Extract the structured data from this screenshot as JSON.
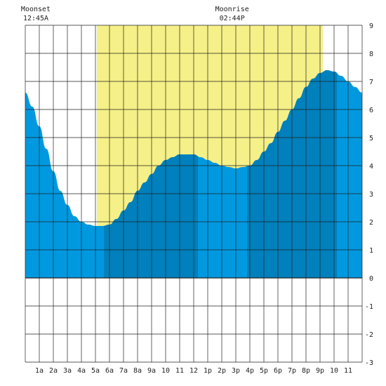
{
  "chart_data": {
    "type": "area",
    "title": "",
    "xlabel": "",
    "ylabel": "",
    "x_ticks": [
      "1a",
      "2a",
      "3a",
      "4a",
      "5a",
      "6a",
      "7a",
      "8a",
      "9a",
      "10",
      "11",
      "12",
      "1p",
      "2p",
      "3p",
      "4p",
      "5p",
      "6p",
      "7p",
      "8p",
      "9p",
      "10",
      "11"
    ],
    "y_ticks": [
      "9",
      "8",
      "7",
      "6",
      "5",
      "4",
      "3",
      "2",
      "1",
      "0",
      "-1",
      "-2",
      "-3"
    ],
    "xlim_hours": [
      0,
      24
    ],
    "ylim": [
      -3,
      9
    ],
    "grid": true,
    "daylight_hours": [
      5.1,
      21.2
    ],
    "shade_band_hours": [
      5.6,
      12.3,
      15.8,
      22.2
    ],
    "series": [
      {
        "x_hours": [
          0,
          0.5,
          1,
          1.5,
          2,
          2.5,
          3,
          3.5,
          4,
          4.5,
          5,
          5.5,
          6,
          6.5,
          7,
          7.5,
          8,
          8.5,
          9,
          9.5,
          10,
          10.5,
          11,
          11.5,
          12,
          12.5,
          13,
          13.5,
          14,
          14.5,
          15,
          15.5,
          16,
          16.5,
          17,
          17.5,
          18,
          18.5,
          19,
          19.5,
          20,
          20.5,
          21,
          21.5,
          22,
          22.5,
          23,
          23.5,
          24
        ],
        "values": [
          6.6,
          6.1,
          5.4,
          4.6,
          3.8,
          3.1,
          2.6,
          2.2,
          2.0,
          1.9,
          1.85,
          1.85,
          1.9,
          2.1,
          2.4,
          2.7,
          3.1,
          3.4,
          3.7,
          4.0,
          4.2,
          4.3,
          4.4,
          4.4,
          4.4,
          4.3,
          4.2,
          4.1,
          4.0,
          3.95,
          3.9,
          3.95,
          4.0,
          4.2,
          4.5,
          4.8,
          5.2,
          5.6,
          6.0,
          6.4,
          6.8,
          7.1,
          7.3,
          7.4,
          7.35,
          7.2,
          7.0,
          6.8,
          6.6
        ]
      }
    ],
    "events": [
      {
        "label": "Moonset",
        "time": "12:45A"
      },
      {
        "label": "Moonrise",
        "time": "02:44P"
      }
    ]
  },
  "colors": {
    "water": "#0099e0",
    "water_shade": "#0080bc",
    "daylight": "#f5f087",
    "grid": "#222222",
    "text": "#222222"
  }
}
